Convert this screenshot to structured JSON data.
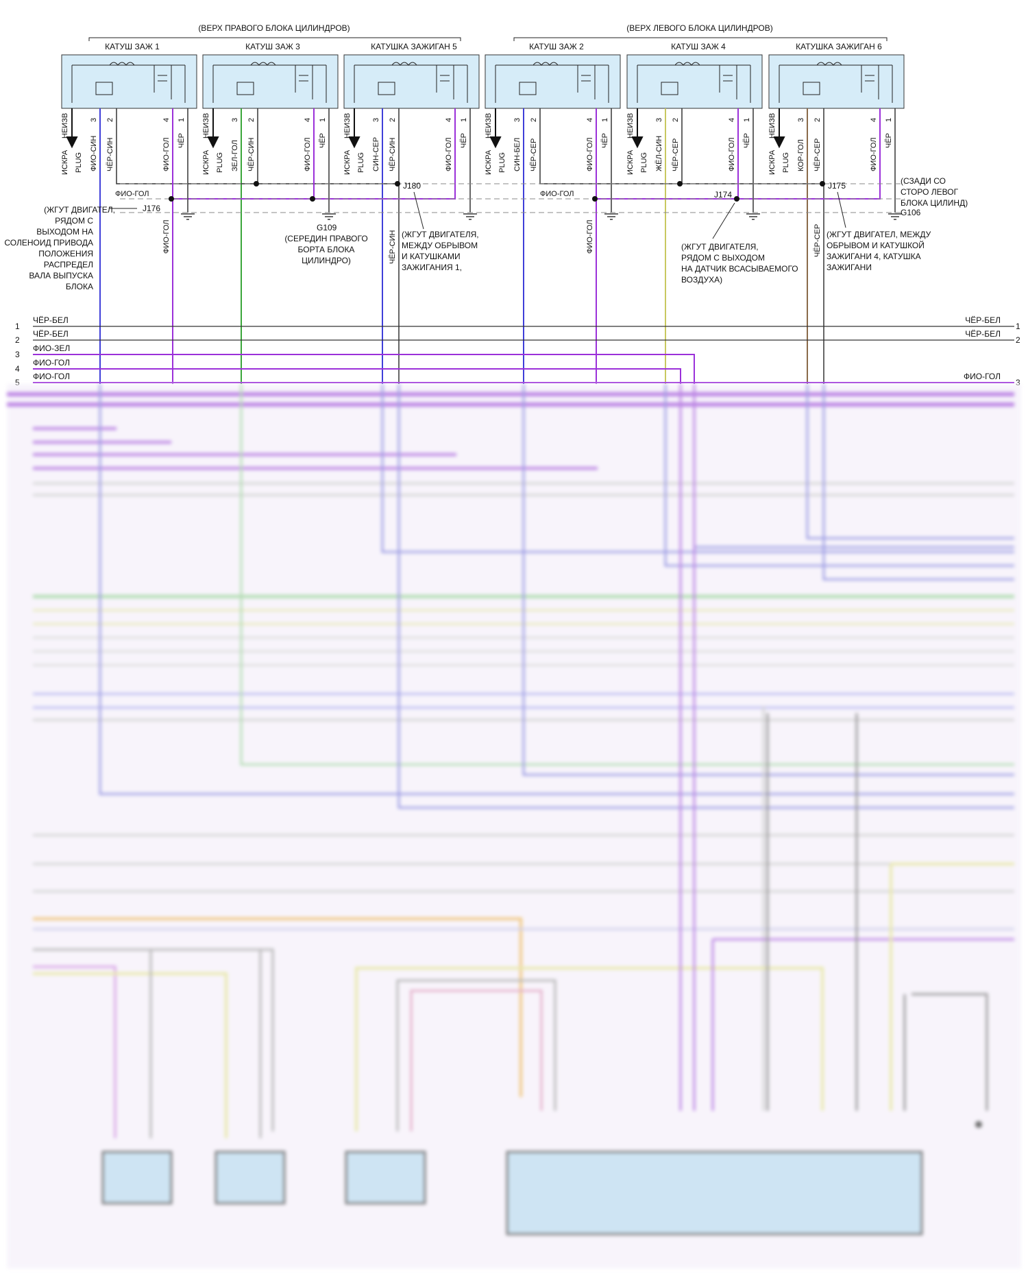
{
  "headings": {
    "right_bank": "(ВЕРХ ПРАВОГО БЛОКА ЦИЛИНДРОВ)",
    "left_bank": "(ВЕРХ ЛЕВОГО БЛОКА ЦИЛИНДРОВ)"
  },
  "coils": [
    {
      "label": "КАТУШ ЗАЖ 1",
      "pins": [
        {
          "n": "3",
          "wire": "ФИО-СИН"
        },
        {
          "n": "2",
          "wire": "ЧЁР-СИН"
        },
        {
          "n": "4",
          "wire": "ФИО-ГОЛ"
        },
        {
          "n": "1",
          "wire": "ЧЁР"
        }
      ]
    },
    {
      "label": "КАТУШ ЗАЖ 3",
      "pins": [
        {
          "n": "3",
          "wire": "ЗЕЛ-ГОЛ"
        },
        {
          "n": "2",
          "wire": "ЧЁР-СИН"
        },
        {
          "n": "4",
          "wire": "ФИО-ГОЛ"
        },
        {
          "n": "1",
          "wire": "ЧЁР"
        }
      ]
    },
    {
      "label": "КАТУШКА ЗАЖИГАН 5",
      "pins": [
        {
          "n": "3",
          "wire": "СИН-СЕР"
        },
        {
          "n": "2",
          "wire": "ЧЁР-СИН"
        },
        {
          "n": "4",
          "wire": "ФИО-ГОЛ"
        },
        {
          "n": "1",
          "wire": "ЧЁР"
        }
      ]
    },
    {
      "label": "КАТУШ ЗАЖ 2",
      "pins": [
        {
          "n": "3",
          "wire": "СИН-БЕЛ"
        },
        {
          "n": "2",
          "wire": "ЧЁР-СЕР"
        },
        {
          "n": "4",
          "wire": "ФИО-ГОЛ"
        },
        {
          "n": "1",
          "wire": "ЧЁР"
        }
      ]
    },
    {
      "label": "КАТУШ ЗАЖ 4",
      "pins": [
        {
          "n": "3",
          "wire": "ЖЁЛ-СИН"
        },
        {
          "n": "2",
          "wire": "ЧЁР-СЕР"
        },
        {
          "n": "4",
          "wire": "ФИО-ГОЛ"
        },
        {
          "n": "1",
          "wire": "ЧЁР"
        }
      ]
    },
    {
      "label": "КАТУШКА ЗАЖИГАН 6",
      "pins": [
        {
          "n": "3",
          "wire": "КОР-ГОЛ"
        },
        {
          "n": "2",
          "wire": "ЧЁР-СЕР"
        },
        {
          "n": "4",
          "wire": "ФИО-ГОЛ"
        },
        {
          "n": "1",
          "wire": "ЧЁР"
        }
      ]
    }
  ],
  "spark_label": "ИСКРА",
  "spark_label2": "НЕИЗВ",
  "plug_label": "PLUG",
  "splices": {
    "J176": "J176",
    "J180": "J180",
    "J174": "J174",
    "J175": "J175",
    "G109": "G109",
    "G106": "G106"
  },
  "wire_labels": {
    "fio_gol_left": "ФИО-ГОЛ",
    "fio_gol_right": "ФИО-ГОЛ",
    "fio_gol_vert1": "ФИО-ГОЛ",
    "fio_gol_vert2": "ФИО-ГОЛ",
    "cher_sin_vert": "ЧЁР-СИН",
    "cher_ser_vert": "ЧЁР-СЕР"
  },
  "notes": {
    "j176_l1": "(ЖГУТ ДВИГАТЕЛ,",
    "j176_l2": "РЯДОМ С",
    "j176_l3": "ВЫХОДОМ НА",
    "j176_l4": "СОЛЕНОИД ПРИВОДА",
    "j176_l5": "ПОЛОЖЕНИЯ",
    "j176_l6": "РАСПРЕДЕЛ",
    "j176_l7": "ВАЛА ВЫПУСКА",
    "j176_l8": "БЛОКА",
    "g109_l1": "(СЕРЕДИН ПРАВОГО",
    "g109_l2": "БОРТА БЛОКА",
    "g109_l3": "ЦИЛИНДРО)",
    "j180_l1": "(ЖГУТ ДВИГАТЕЛЯ,",
    "j180_l2": "МЕЖДУ ОБРЫВОМ",
    "j180_l3": "И КАТУШКАМИ",
    "j180_l4": "ЗАЖИГАНИЯ 1,",
    "j174_l1": "(ЖГУТ ДВИГАТЕЛЯ,",
    "j174_l2": "РЯДОМ С ВЫХОДОМ",
    "j174_l3": "НА ДАТЧИК ВСАСЫВАЕМОГО",
    "j174_l4": "ВОЗДУХА)",
    "j175_l1": "(ЖГУТ ДВИГАТЕЛ, МЕЖДУ",
    "j175_l2": "ОБРЫВОМ И КАТУШКОЙ",
    "j175_l3": "ЗАЖИГАНИ 4, КАТУШКА",
    "j175_l4": "ЗАЖИГАНИ",
    "g106_l1": "(СЗАДИ СО",
    "g106_l2": "СТОРО ЛЕВОГ",
    "g106_l3": "БЛОКА ЦИЛИНД)"
  },
  "connector_rows": [
    {
      "pin_left": "1",
      "label_left": "ЧЁР-БЕЛ",
      "label_right": "ЧЁР-БЕЛ",
      "pin_right": "1"
    },
    {
      "pin_left": "2",
      "label_left": "ЧЁР-БЕЛ",
      "label_right": "ЧЁР-БЕЛ",
      "pin_right": "2"
    },
    {
      "pin_left": "3",
      "label_left": "ФИО-ЗЕЛ",
      "label_right": "",
      "pin_right": ""
    },
    {
      "pin_left": "4",
      "label_left": "ФИО-ГОЛ",
      "label_right": "",
      "pin_right": ""
    },
    {
      "pin_left": "5",
      "label_left": "ФИО-ГОЛ",
      "label_right": "ФИО-ГОЛ",
      "pin_right": "3"
    }
  ],
  "colors": {
    "violet": "#9b30d9",
    "blue": "#3f3fd9",
    "green": "#3aa63a",
    "yellow": "#e0e060",
    "brown": "#8a6a4a",
    "black": "#222222",
    "gray": "#777777",
    "orange": "#f0a040",
    "light_blue_box": "#d6ecf8"
  }
}
